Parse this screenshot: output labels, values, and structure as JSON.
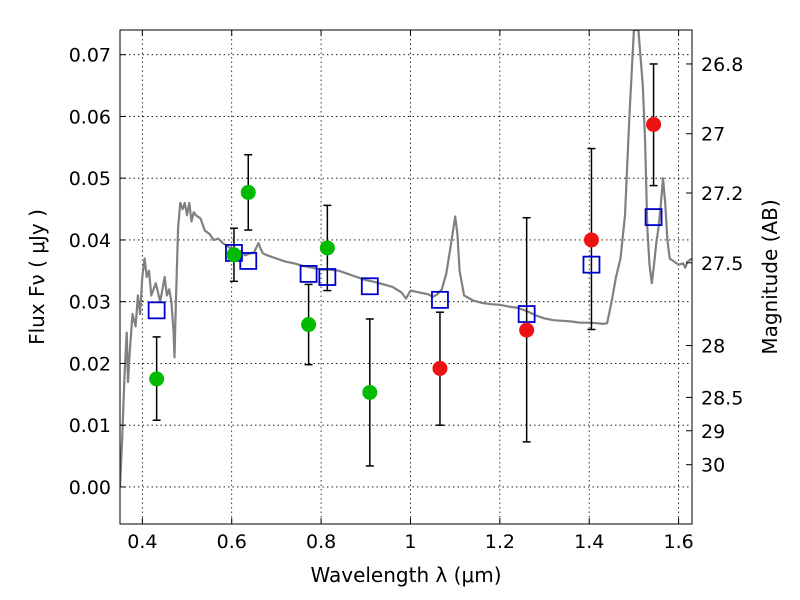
{
  "chart_data": {
    "type": "scatter",
    "title": "",
    "xlabel": "Wavelength  λ (μm)",
    "ylabel": "Flux  Fν  ( μJy )",
    "ylabel_right": "Magnitude (AB)",
    "xlim": [
      0.35,
      1.63
    ],
    "ylim": [
      -0.006,
      0.074
    ],
    "grid": true,
    "x_ticks": [
      0.4,
      0.6,
      0.8,
      1.0,
      1.2,
      1.4,
      1.6
    ],
    "x_tick_labels": [
      "0.4",
      "0.6",
      "0.8",
      "1",
      "1.2",
      "1.4",
      "1.6"
    ],
    "y_ticks": [
      0.0,
      0.01,
      0.02,
      0.03,
      0.04,
      0.05,
      0.06,
      0.07
    ],
    "y_tick_labels": [
      "0.00",
      "0.01",
      "0.02",
      "0.03",
      "0.04",
      "0.05",
      "0.06",
      "0.07"
    ],
    "right_ticks": [
      {
        "label": "26.8",
        "flux": 0.0685
      },
      {
        "label": "27",
        "flux": 0.0572
      },
      {
        "label": "27.2",
        "flux": 0.0476
      },
      {
        "label": "27.5",
        "flux": 0.0363
      },
      {
        "label": "28",
        "flux": 0.0229
      },
      {
        "label": "28.5",
        "flux": 0.0145
      },
      {
        "label": "29",
        "flux": 0.0091
      },
      {
        "label": "30",
        "flux": 0.0036
      }
    ],
    "colors": {
      "green": "#00bb00",
      "red": "#ee1111",
      "model_box": "#0000cc",
      "spectrum": "#808080",
      "errorbar": "#000000"
    },
    "green_points": [
      {
        "x": 0.432,
        "y": 0.0175,
        "lo": 0.0108,
        "hi": 0.0243
      },
      {
        "x": 0.605,
        "y": 0.0376,
        "lo": 0.0333,
        "hi": 0.0419
      },
      {
        "x": 0.637,
        "y": 0.0477,
        "lo": 0.0416,
        "hi": 0.0538
      },
      {
        "x": 0.772,
        "y": 0.0263,
        "lo": 0.0198,
        "hi": 0.0328
      },
      {
        "x": 0.814,
        "y": 0.0387,
        "lo": 0.0318,
        "hi": 0.0456
      },
      {
        "x": 0.909,
        "y": 0.0153,
        "lo": 0.0034,
        "hi": 0.0272
      }
    ],
    "red_points": [
      {
        "x": 1.066,
        "y": 0.0192,
        "lo": 0.01,
        "hi": 0.0283
      },
      {
        "x": 1.26,
        "y": 0.0254,
        "lo": 0.0073,
        "hi": 0.0436
      },
      {
        "x": 1.405,
        "y": 0.04,
        "lo": 0.0255,
        "hi": 0.0548
      },
      {
        "x": 1.544,
        "y": 0.0587,
        "lo": 0.0488,
        "hi": 0.0685
      }
    ],
    "model_boxes": [
      {
        "x": 0.432,
        "y": 0.0286
      },
      {
        "x": 0.605,
        "y": 0.0379
      },
      {
        "x": 0.637,
        "y": 0.0366
      },
      {
        "x": 0.772,
        "y": 0.0345
      },
      {
        "x": 0.814,
        "y": 0.034
      },
      {
        "x": 0.909,
        "y": 0.0325
      },
      {
        "x": 1.066,
        "y": 0.0303
      },
      {
        "x": 1.26,
        "y": 0.028
      },
      {
        "x": 1.405,
        "y": 0.036
      },
      {
        "x": 1.544,
        "y": 0.0437
      }
    ],
    "spectrum": [
      [
        0.35,
        0.0
      ],
      [
        0.355,
        0.008
      ],
      [
        0.36,
        0.018
      ],
      [
        0.365,
        0.025
      ],
      [
        0.368,
        0.017
      ],
      [
        0.372,
        0.022
      ],
      [
        0.378,
        0.028
      ],
      [
        0.385,
        0.026
      ],
      [
        0.39,
        0.031
      ],
      [
        0.395,
        0.028
      ],
      [
        0.4,
        0.034
      ],
      [
        0.405,
        0.037
      ],
      [
        0.41,
        0.034
      ],
      [
        0.415,
        0.035
      ],
      [
        0.42,
        0.031
      ],
      [
        0.43,
        0.033
      ],
      [
        0.44,
        0.03
      ],
      [
        0.45,
        0.034
      ],
      [
        0.455,
        0.031
      ],
      [
        0.46,
        0.032
      ],
      [
        0.465,
        0.03
      ],
      [
        0.47,
        0.025
      ],
      [
        0.472,
        0.021
      ],
      [
        0.475,
        0.03
      ],
      [
        0.48,
        0.042
      ],
      [
        0.485,
        0.046
      ],
      [
        0.49,
        0.045
      ],
      [
        0.495,
        0.046
      ],
      [
        0.5,
        0.044
      ],
      [
        0.505,
        0.046
      ],
      [
        0.51,
        0.043
      ],
      [
        0.515,
        0.0445
      ],
      [
        0.52,
        0.044
      ],
      [
        0.53,
        0.0435
      ],
      [
        0.54,
        0.0415
      ],
      [
        0.55,
        0.041
      ],
      [
        0.56,
        0.04
      ],
      [
        0.57,
        0.0402
      ],
      [
        0.58,
        0.0395
      ],
      [
        0.59,
        0.039
      ],
      [
        0.6,
        0.0385
      ],
      [
        0.61,
        0.038
      ],
      [
        0.62,
        0.0382
      ],
      [
        0.63,
        0.0375
      ],
      [
        0.64,
        0.0378
      ],
      [
        0.65,
        0.038
      ],
      [
        0.66,
        0.0395
      ],
      [
        0.665,
        0.0385
      ],
      [
        0.67,
        0.0378
      ],
      [
        0.68,
        0.0375
      ],
      [
        0.7,
        0.037
      ],
      [
        0.72,
        0.0365
      ],
      [
        0.74,
        0.0362
      ],
      [
        0.76,
        0.0358
      ],
      [
        0.78,
        0.0355
      ],
      [
        0.8,
        0.0352
      ],
      [
        0.82,
        0.0352
      ],
      [
        0.84,
        0.035
      ],
      [
        0.86,
        0.0345
      ],
      [
        0.88,
        0.034
      ],
      [
        0.9,
        0.0335
      ],
      [
        0.92,
        0.0332
      ],
      [
        0.94,
        0.0328
      ],
      [
        0.96,
        0.0324
      ],
      [
        0.98,
        0.0315
      ],
      [
        0.99,
        0.0305
      ],
      [
        1.0,
        0.0318
      ],
      [
        1.02,
        0.0315
      ],
      [
        1.04,
        0.0312
      ],
      [
        1.05,
        0.0308
      ],
      [
        1.06,
        0.0312
      ],
      [
        1.07,
        0.032
      ],
      [
        1.08,
        0.0345
      ],
      [
        1.09,
        0.039
      ],
      [
        1.1,
        0.0438
      ],
      [
        1.105,
        0.041
      ],
      [
        1.11,
        0.035
      ],
      [
        1.12,
        0.031
      ],
      [
        1.14,
        0.0302
      ],
      [
        1.16,
        0.0298
      ],
      [
        1.18,
        0.0296
      ],
      [
        1.2,
        0.0295
      ],
      [
        1.22,
        0.0292
      ],
      [
        1.24,
        0.029
      ],
      [
        1.26,
        0.0285
      ],
      [
        1.28,
        0.0278
      ],
      [
        1.3,
        0.0273
      ],
      [
        1.32,
        0.027
      ],
      [
        1.34,
        0.0269
      ],
      [
        1.36,
        0.0268
      ],
      [
        1.38,
        0.0266
      ],
      [
        1.4,
        0.0266
      ],
      [
        1.42,
        0.0265
      ],
      [
        1.43,
        0.0264
      ],
      [
        1.44,
        0.0265
      ],
      [
        1.45,
        0.03
      ],
      [
        1.46,
        0.034
      ],
      [
        1.47,
        0.037
      ],
      [
        1.48,
        0.044
      ],
      [
        1.49,
        0.06
      ],
      [
        1.5,
        0.074
      ],
      [
        1.51,
        0.074
      ],
      [
        1.52,
        0.065
      ],
      [
        1.525,
        0.056
      ],
      [
        1.53,
        0.042
      ],
      [
        1.535,
        0.036
      ],
      [
        1.54,
        0.033
      ],
      [
        1.545,
        0.036
      ],
      [
        1.55,
        0.0395
      ],
      [
        1.555,
        0.042
      ],
      [
        1.56,
        0.0455
      ],
      [
        1.565,
        0.05
      ],
      [
        1.57,
        0.046
      ],
      [
        1.575,
        0.04
      ],
      [
        1.58,
        0.037
      ],
      [
        1.59,
        0.0365
      ],
      [
        1.6,
        0.036
      ],
      [
        1.61,
        0.0362
      ],
      [
        1.615,
        0.0355
      ],
      [
        1.62,
        0.0365
      ],
      [
        1.63,
        0.037
      ]
    ]
  }
}
